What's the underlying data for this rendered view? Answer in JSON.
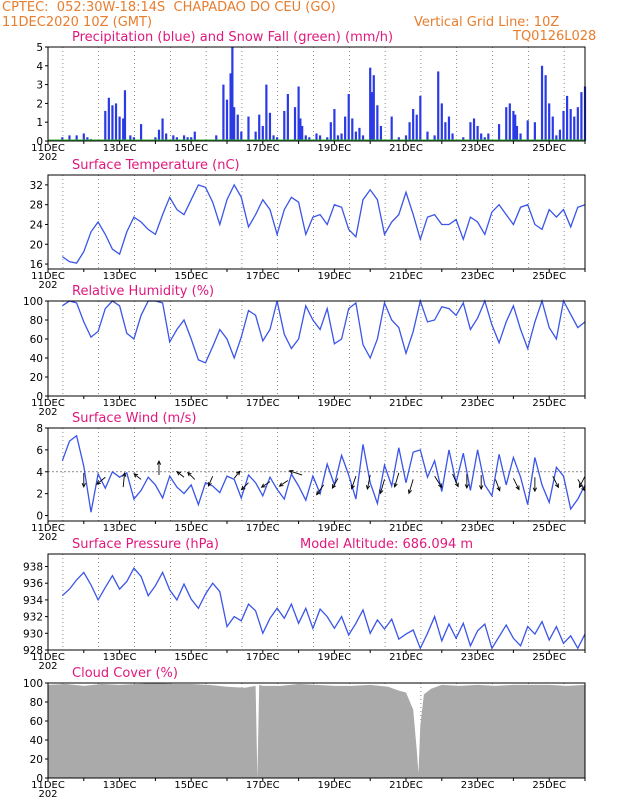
{
  "header": {
    "line1": "CPTEC:  052:30W-18:14S  CHAPADAO DO CEU (GO)",
    "line2": "11DEC2020 10Z (GMT)",
    "grid_note": "Vertical Grid Line: 10Z",
    "code": "TQ0126L028"
  },
  "colors": {
    "header": "#e87d2e",
    "title": "#e0187d",
    "series_line": "#3a55e8",
    "precip_bar": "#2a3ae6",
    "snow_line": "#2dae2d",
    "cloud_fill": "#aaaaaa"
  },
  "x_labels": [
    "11DEC",
    "13DEC",
    "15DEC",
    "17DEC",
    "19DEC",
    "21DEC",
    "23DEC",
    "25DEC"
  ],
  "x_cut_label": "202",
  "panels": [
    {
      "id": "precip",
      "title": "Precipitation (blue) and Snow Fall (green) (mm/h)",
      "ymin": 0,
      "ymax": 5,
      "ticks": [
        "0",
        "1",
        "2",
        "3",
        "4",
        "5"
      ]
    },
    {
      "id": "temp",
      "title": "Surface Temperature (nC)",
      "ymin": 15,
      "ymax": 34,
      "ticks": [
        "16",
        "20",
        "24",
        "28",
        "32"
      ]
    },
    {
      "id": "rh",
      "title": "Relative Humidity (%)",
      "ymin": 0,
      "ymax": 100,
      "ticks": [
        "0",
        "20",
        "40",
        "60",
        "80",
        "100"
      ]
    },
    {
      "id": "wind",
      "title": "Surface Wind (m/s)",
      "ymin": -0.5,
      "ymax": 8,
      "ticks": [
        "0",
        "2",
        "4",
        "6",
        "8"
      ]
    },
    {
      "id": "pres",
      "title": "Surface Pressure (hPa)",
      "subtitle": "Model Altitude: 686.094 m",
      "ymin": 928,
      "ymax": 939.5,
      "ticks": [
        "928",
        "930",
        "932",
        "934",
        "936",
        "938"
      ]
    },
    {
      "id": "cloud",
      "title": "Cloud Cover (%)",
      "ymin": 0,
      "ymax": 100,
      "ticks": [
        "0",
        "20",
        "40",
        "60",
        "80",
        "100"
      ]
    }
  ],
  "chart_data": [
    {
      "type": "bar",
      "title": "Precipitation (blue) and Snow Fall (green) (mm/h)",
      "x_unit": "days since 11DEC 00Z",
      "ylim": [
        0,
        5
      ],
      "series": [
        {
          "name": "Precipitation",
          "x": [
            0.4,
            0.6,
            0.8,
            1.0,
            1.1,
            1.2,
            1.6,
            1.7,
            1.8,
            1.9,
            2.0,
            2.1,
            2.15,
            2.3,
            2.4,
            2.6,
            3.0,
            3.1,
            3.2,
            3.3,
            3.5,
            3.6,
            3.8,
            3.9,
            4.0,
            4.1,
            4.7,
            4.9,
            5.0,
            5.1,
            5.15,
            5.2,
            5.3,
            5.4,
            5.6,
            5.8,
            5.9,
            6.0,
            6.1,
            6.2,
            6.3,
            6.4,
            6.6,
            6.7,
            6.9,
            7.0,
            7.05,
            7.1,
            7.2,
            7.3,
            7.5,
            7.6,
            7.8,
            7.9,
            8.0,
            8.1,
            8.2,
            8.3,
            8.4,
            8.5,
            8.6,
            8.7,
            8.8,
            9.0,
            9.05,
            9.1,
            9.2,
            9.3,
            9.6,
            9.8,
            10.0,
            10.1,
            10.2,
            10.3,
            10.4,
            10.6,
            10.8,
            10.9,
            11.0,
            11.1,
            11.2,
            11.3,
            11.6,
            11.8,
            11.9,
            12.0,
            12.1,
            12.2,
            12.3,
            12.6,
            12.8,
            12.9,
            13.0,
            13.05,
            13.1,
            13.2,
            13.4,
            13.6,
            13.8,
            13.9,
            14.0,
            14.1,
            14.2,
            14.3,
            14.4,
            14.5,
            14.6,
            14.7,
            14.8,
            14.9,
            15.0
          ],
          "values": [
            0.2,
            0.3,
            0.3,
            0.4,
            0.2,
            0.1,
            1.6,
            2.3,
            1.9,
            2.0,
            1.3,
            1.2,
            2.7,
            0.3,
            0.2,
            0.9,
            0.2,
            0.6,
            1.2,
            0.4,
            0.3,
            0.2,
            0.3,
            0.2,
            0.2,
            0.5,
            0.3,
            3.0,
            2.2,
            3.6,
            5.0,
            1.8,
            1.4,
            0.5,
            1.3,
            0.5,
            1.4,
            0.8,
            3.0,
            1.5,
            0.3,
            0.2,
            1.6,
            2.5,
            1.8,
            2.9,
            1.2,
            0.8,
            0.3,
            0.2,
            0.4,
            0.3,
            0.2,
            1.0,
            1.7,
            0.3,
            0.4,
            1.3,
            2.5,
            1.2,
            0.5,
            0.7,
            0.3,
            3.9,
            2.6,
            3.5,
            1.9,
            0.8,
            1.3,
            0.2,
            0.3,
            1.0,
            1.7,
            1.4,
            2.4,
            0.5,
            0.3,
            3.7,
            2.0,
            1.0,
            1.3,
            0.4,
            0.2,
            1.0,
            1.2,
            0.8,
            0.4,
            0.2,
            0.4,
            0.9,
            1.8,
            2.0,
            1.6,
            1.4,
            0.8,
            0.4,
            1.1,
            1.0,
            4.0,
            3.5,
            2.0,
            1.3,
            0.3,
            0.6,
            1.6,
            2.4,
            1.7,
            1.3,
            1.8,
            2.6,
            2.9
          ]
        },
        {
          "name": "Snow Fall",
          "x": [
            0,
            15
          ],
          "values": [
            0,
            0
          ]
        }
      ]
    },
    {
      "type": "line",
      "title": "Surface Temperature (nC)",
      "x_unit": "days since 11DEC 00Z",
      "ylim": [
        15,
        34
      ],
      "x": [
        0.4,
        0.6,
        0.8,
        1.0,
        1.2,
        1.4,
        1.6,
        1.8,
        2.0,
        2.2,
        2.4,
        2.6,
        2.8,
        3.0,
        3.2,
        3.4,
        3.6,
        3.8,
        4.0,
        4.2,
        4.4,
        4.6,
        4.8,
        5.0,
        5.2,
        5.4,
        5.6,
        5.8,
        6.0,
        6.2,
        6.4,
        6.6,
        6.8,
        7.0,
        7.2,
        7.4,
        7.6,
        7.8,
        8.0,
        8.2,
        8.4,
        8.6,
        8.8,
        9.0,
        9.2,
        9.4,
        9.6,
        9.8,
        10.0,
        10.2,
        10.4,
        10.6,
        10.8,
        11.0,
        11.2,
        11.4,
        11.6,
        11.8,
        12.0,
        12.2,
        12.4,
        12.6,
        12.8,
        13.0,
        13.2,
        13.4,
        13.6,
        13.8,
        14.0,
        14.2,
        14.4,
        14.6,
        14.8,
        15.0
      ],
      "values": [
        17.5,
        16.5,
        16.2,
        18.5,
        22.5,
        24.5,
        22.0,
        19.0,
        18.0,
        22.5,
        25.5,
        24.5,
        23.0,
        22.0,
        26.0,
        29.5,
        27.0,
        26.0,
        29.0,
        32.0,
        31.5,
        28.5,
        24.0,
        29.0,
        32.0,
        29.5,
        23.5,
        26.0,
        29.0,
        27.0,
        22.0,
        27.0,
        29.5,
        28.5,
        22.0,
        25.5,
        26.0,
        24.0,
        28.0,
        27.5,
        23.0,
        21.5,
        29.0,
        31.0,
        29.0,
        22.0,
        24.5,
        26.0,
        30.5,
        26.0,
        21.0,
        25.5,
        26.0,
        24.0,
        24.0,
        25.0,
        21.0,
        25.5,
        24.5,
        22.0,
        26.5,
        28.0,
        26.0,
        24.0,
        27.5,
        28.0,
        24.0,
        23.0,
        27.0,
        25.5,
        27.0,
        23.5,
        27.5,
        28.0
      ]
    },
    {
      "type": "line",
      "title": "Relative Humidity (%)",
      "x_unit": "days since 11DEC 00Z",
      "ylim": [
        0,
        100
      ],
      "x": [
        0.4,
        0.6,
        0.8,
        1.0,
        1.2,
        1.4,
        1.6,
        1.8,
        2.0,
        2.2,
        2.4,
        2.6,
        2.8,
        3.0,
        3.2,
        3.4,
        3.6,
        3.8,
        4.0,
        4.2,
        4.4,
        4.6,
        4.8,
        5.0,
        5.2,
        5.4,
        5.6,
        5.8,
        6.0,
        6.2,
        6.4,
        6.6,
        6.8,
        7.0,
        7.2,
        7.4,
        7.6,
        7.8,
        8.0,
        8.2,
        8.4,
        8.6,
        8.8,
        9.0,
        9.2,
        9.4,
        9.6,
        9.8,
        10.0,
        10.2,
        10.4,
        10.6,
        10.8,
        11.0,
        11.2,
        11.4,
        11.6,
        11.8,
        12.0,
        12.2,
        12.4,
        12.6,
        12.8,
        13.0,
        13.2,
        13.4,
        13.6,
        13.8,
        14.0,
        14.2,
        14.4,
        14.6,
        14.8,
        15.0
      ],
      "values": [
        95,
        100,
        98,
        78,
        62,
        68,
        92,
        100,
        95,
        66,
        60,
        85,
        100,
        100,
        98,
        57,
        70,
        80,
        60,
        38,
        35,
        52,
        70,
        60,
        40,
        62,
        90,
        85,
        58,
        70,
        100,
        65,
        50,
        60,
        95,
        80,
        70,
        92,
        55,
        60,
        92,
        98,
        54,
        40,
        60,
        98,
        80,
        72,
        45,
        68,
        100,
        78,
        80,
        94,
        92,
        85,
        98,
        70,
        82,
        100,
        75,
        56,
        78,
        95,
        70,
        50,
        78,
        100,
        72,
        60,
        100,
        86,
        72,
        78
      ]
    },
    {
      "type": "line",
      "title": "Surface Wind (m/s)",
      "x_unit": "days since 11DEC 00Z",
      "ylim": [
        -0.5,
        8
      ],
      "x": [
        0.4,
        0.6,
        0.8,
        1.0,
        1.2,
        1.4,
        1.6,
        1.8,
        2.0,
        2.2,
        2.4,
        2.6,
        2.8,
        3.0,
        3.2,
        3.4,
        3.6,
        3.8,
        4.0,
        4.2,
        4.4,
        4.6,
        4.8,
        5.0,
        5.2,
        5.4,
        5.6,
        5.8,
        6.0,
        6.2,
        6.4,
        6.6,
        6.8,
        7.0,
        7.2,
        7.4,
        7.6,
        7.8,
        8.0,
        8.2,
        8.4,
        8.6,
        8.8,
        9.0,
        9.2,
        9.4,
        9.6,
        9.8,
        10.0,
        10.2,
        10.4,
        10.6,
        10.8,
        11.0,
        11.2,
        11.4,
        11.6,
        11.8,
        12.0,
        12.2,
        12.4,
        12.6,
        12.8,
        13.0,
        13.2,
        13.4,
        13.6,
        13.8,
        14.0,
        14.2,
        14.4,
        14.6,
        14.8,
        15.0
      ],
      "values": [
        5.0,
        6.8,
        7.3,
        4.5,
        0.3,
        3.8,
        2.5,
        4.0,
        3.5,
        3.9,
        1.5,
        2.3,
        3.5,
        2.8,
        1.6,
        3.6,
        2.6,
        2.0,
        2.8,
        1.0,
        3.0,
        2.7,
        2.1,
        3.6,
        3.3,
        1.6,
        3.7,
        3.0,
        1.8,
        3.5,
        2.4,
        1.5,
        3.8,
        2.7,
        1.4,
        3.6,
        2.0,
        4.7,
        2.8,
        5.5,
        3.7,
        1.5,
        6.5,
        3.0,
        1.1,
        4.6,
        2.7,
        6.2,
        3.0,
        5.8,
        6.0,
        3.5,
        5.0,
        2.2,
        6.0,
        3.0,
        5.7,
        2.3,
        6.0,
        2.8,
        1.8,
        5.6,
        2.8,
        5.3,
        3.5,
        1.0,
        5.3,
        2.8,
        1.2,
        4.4,
        3.6,
        0.6,
        1.5,
        2.8
      ]
    },
    {
      "type": "line",
      "title": "Surface Pressure (hPa)",
      "subtitle": "Model Altitude: 686.094 m",
      "x_unit": "days since 11DEC 00Z",
      "ylim": [
        928,
        939.5
      ],
      "x": [
        0.4,
        0.6,
        0.8,
        1.0,
        1.2,
        1.4,
        1.6,
        1.8,
        2.0,
        2.2,
        2.4,
        2.6,
        2.8,
        3.0,
        3.2,
        3.4,
        3.6,
        3.8,
        4.0,
        4.2,
        4.4,
        4.6,
        4.8,
        5.0,
        5.2,
        5.4,
        5.6,
        5.8,
        6.0,
        6.2,
        6.4,
        6.6,
        6.8,
        7.0,
        7.2,
        7.4,
        7.6,
        7.8,
        8.0,
        8.2,
        8.4,
        8.6,
        8.8,
        9.0,
        9.2,
        9.4,
        9.6,
        9.8,
        10.0,
        10.2,
        10.4,
        10.6,
        10.8,
        11.0,
        11.2,
        11.4,
        11.6,
        11.8,
        12.0,
        12.2,
        12.4,
        12.6,
        12.8,
        13.0,
        13.2,
        13.4,
        13.6,
        13.8,
        14.0,
        14.2,
        14.4,
        14.6,
        14.8,
        15.0
      ],
      "values": [
        934.5,
        935.3,
        936.4,
        937.3,
        935.8,
        934.0,
        935.5,
        936.9,
        935.3,
        936.2,
        937.8,
        936.8,
        934.5,
        935.7,
        937.3,
        935.2,
        934.0,
        935.9,
        934.1,
        933.0,
        934.7,
        936.0,
        935.0,
        930.8,
        932.0,
        931.5,
        933.5,
        932.7,
        930.0,
        931.8,
        933.0,
        931.8,
        933.5,
        931.2,
        933.0,
        930.6,
        932.9,
        932.0,
        930.6,
        932.0,
        929.8,
        931.2,
        932.8,
        930.0,
        931.6,
        930.5,
        931.7,
        929.3,
        929.9,
        930.4,
        928.2,
        930.0,
        932.0,
        929.1,
        931.1,
        929.4,
        931.2,
        928.5,
        930.3,
        931.1,
        928.2,
        929.6,
        931.0,
        929.4,
        928.5,
        930.8,
        929.9,
        931.4,
        929.2,
        930.8,
        928.8,
        929.7,
        928.2,
        929.9
      ]
    },
    {
      "type": "area",
      "title": "Cloud Cover (%)",
      "x_unit": "days since 11DEC 00Z",
      "ylim": [
        0,
        100
      ],
      "x": [
        0.0,
        0.5,
        1.0,
        1.5,
        2.0,
        2.5,
        3.0,
        3.5,
        4.0,
        4.5,
        5.0,
        5.5,
        5.8,
        5.85,
        5.9,
        6.0,
        6.5,
        7.0,
        7.5,
        8.0,
        8.5,
        9.0,
        9.5,
        9.8,
        10.0,
        10.2,
        10.3,
        10.35,
        10.4,
        10.5,
        10.7,
        11.0,
        11.5,
        12.0,
        12.5,
        13.0,
        13.5,
        14.0,
        14.5,
        15.0
      ],
      "values": [
        98,
        99,
        97,
        99,
        98,
        99,
        100,
        99,
        99,
        98,
        96,
        95,
        97,
        0,
        98,
        97,
        97,
        99,
        98,
        97,
        97,
        98,
        96,
        92,
        90,
        72,
        30,
        5,
        55,
        88,
        94,
        98,
        97,
        98,
        97,
        98,
        98,
        98,
        97,
        98
      ]
    }
  ]
}
